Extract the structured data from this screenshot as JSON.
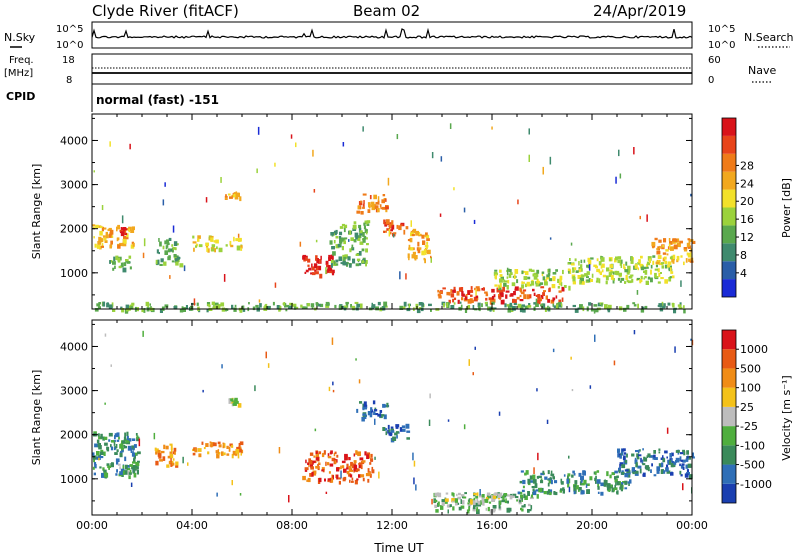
{
  "header": {
    "station": "Clyde River (fitACF)",
    "beam": "Beam 02",
    "date": "24/Apr/2019"
  },
  "status_panels": {
    "nsky_label": "N.Sky",
    "nsearch_label": "N.Search",
    "freq_label_1": "Freq.",
    "freq_label_2": "[MHz]",
    "nave_label": "Nave",
    "cpid_label": "CPID",
    "cpid_text": "normal (fast) -151",
    "noise_left_ticks": [
      "10^5",
      "10^0"
    ],
    "noise_right_ticks": [
      "10^5",
      "10^0"
    ],
    "freq_ticks": [
      "18",
      "8"
    ],
    "nave_ticks": [
      "60",
      "0"
    ]
  },
  "chart_data": [
    {
      "type": "heatmap",
      "panel": "power",
      "ylabel": "Slant Range [km]",
      "xlabel": "",
      "x_unit_hours": [
        0,
        24
      ],
      "ylim": [
        180,
        4600
      ],
      "yticks": [
        "1000",
        "2000",
        "3000",
        "4000"
      ],
      "xticks": [
        "00:00",
        "04:00",
        "08:00",
        "12:00",
        "16:00",
        "20:00",
        "00:00"
      ],
      "colorbar": {
        "label": "Power [dB]",
        "ticks": [
          "4",
          "8",
          "12",
          "16",
          "20",
          "24",
          "28"
        ],
        "colors": [
          "#1a2bd6",
          "#2a5ea8",
          "#3f8a6e",
          "#5aa84e",
          "#9bd23c",
          "#f2e12a",
          "#f2a81e",
          "#ef7b19",
          "#e8441a",
          "#d9131a"
        ]
      },
      "regions": [
        {
          "t0": 0.0,
          "t1": 1.7,
          "r0": 1600,
          "r1": 2100,
          "level": 6
        },
        {
          "t0": 0.6,
          "t1": 1.6,
          "r0": 1100,
          "r1": 1400,
          "level": 3
        },
        {
          "t0": 1.1,
          "t1": 1.3,
          "r0": 1900,
          "r1": 2050,
          "level": 9
        },
        {
          "t0": 2.5,
          "t1": 3.5,
          "r0": 1200,
          "r1": 1800,
          "level": 3
        },
        {
          "t0": 4.0,
          "t1": 6.0,
          "r0": 1550,
          "r1": 1850,
          "level": 5
        },
        {
          "t0": 5.3,
          "t1": 5.9,
          "r0": 2700,
          "r1": 2850,
          "level": 6
        },
        {
          "t0": 8.4,
          "t1": 9.6,
          "r0": 950,
          "r1": 1450,
          "level": 9
        },
        {
          "t0": 9.5,
          "t1": 11.0,
          "r0": 1200,
          "r1": 2200,
          "level": 3
        },
        {
          "t0": 10.5,
          "t1": 11.8,
          "r0": 2400,
          "r1": 2800,
          "level": 7
        },
        {
          "t0": 11.6,
          "t1": 12.6,
          "r0": 1900,
          "r1": 2250,
          "level": 8
        },
        {
          "t0": 12.6,
          "t1": 13.4,
          "r0": 1300,
          "r1": 2000,
          "level": 6
        },
        {
          "t0": 13.8,
          "t1": 18.8,
          "r0": 380,
          "r1": 700,
          "level": 8
        },
        {
          "t0": 16.0,
          "t1": 19.2,
          "r0": 700,
          "r1": 1100,
          "level": 4
        },
        {
          "t0": 19.0,
          "t1": 23.2,
          "r0": 800,
          "r1": 1400,
          "level": 4
        },
        {
          "t0": 22.3,
          "t1": 24.0,
          "r0": 1250,
          "r1": 1800,
          "level": 6
        },
        {
          "t0": 0.0,
          "t1": 24.0,
          "r0": 180,
          "r1": 350,
          "level": 3
        }
      ]
    },
    {
      "type": "heatmap",
      "panel": "velocity",
      "ylabel": "Slant Range [km]",
      "xlabel": "Time UT",
      "x_unit_hours": [
        0,
        24
      ],
      "ylim": [
        180,
        4600
      ],
      "yticks": [
        "1000",
        "2000",
        "3000",
        "4000"
      ],
      "xticks": [
        "00:00",
        "04:00",
        "08:00",
        "12:00",
        "16:00",
        "20:00",
        "00:00"
      ],
      "colorbar": {
        "label": "Velocity [m s⁻¹]",
        "ticks": [
          "1000",
          "500",
          "100",
          "25",
          "-25",
          "-100",
          "-500",
          "-1000"
        ],
        "colors": [
          "#1a3fb0",
          "#2f6fb7",
          "#3a8a5a",
          "#4fae3e",
          "#bdbdbd",
          "#f4c21a",
          "#f08c16",
          "#e85a14",
          "#d9131a"
        ]
      },
      "regions": [
        {
          "t0": 0.0,
          "t1": 1.8,
          "r0": 1100,
          "r1": 2100,
          "level": 2
        },
        {
          "t0": 1.0,
          "t1": 1.8,
          "r0": 1100,
          "r1": 1400,
          "level": 3
        },
        {
          "t0": 2.5,
          "t1": 3.5,
          "r0": 1300,
          "r1": 1800,
          "level": 6
        },
        {
          "t0": 4.0,
          "t1": 6.0,
          "r0": 1550,
          "r1": 1850,
          "level": 6
        },
        {
          "t0": 5.4,
          "t1": 5.9,
          "r0": 2700,
          "r1": 2850,
          "level": 4
        },
        {
          "t0": 8.4,
          "t1": 11.2,
          "r0": 950,
          "r1": 1650,
          "level": 7
        },
        {
          "t0": 10.5,
          "t1": 11.8,
          "r0": 2400,
          "r1": 2800,
          "level": 1
        },
        {
          "t0": 11.6,
          "t1": 12.6,
          "r0": 1900,
          "r1": 2250,
          "level": 1
        },
        {
          "t0": 13.6,
          "t1": 17.8,
          "r0": 300,
          "r1": 700,
          "level": 3
        },
        {
          "t0": 14.0,
          "t1": 16.5,
          "r0": 500,
          "r1": 700,
          "level": 4
        },
        {
          "t0": 17.0,
          "t1": 21.5,
          "r0": 700,
          "r1": 1200,
          "level": 2
        },
        {
          "t0": 21.0,
          "t1": 24.0,
          "r0": 1100,
          "r1": 1700,
          "level": 1
        }
      ]
    }
  ]
}
